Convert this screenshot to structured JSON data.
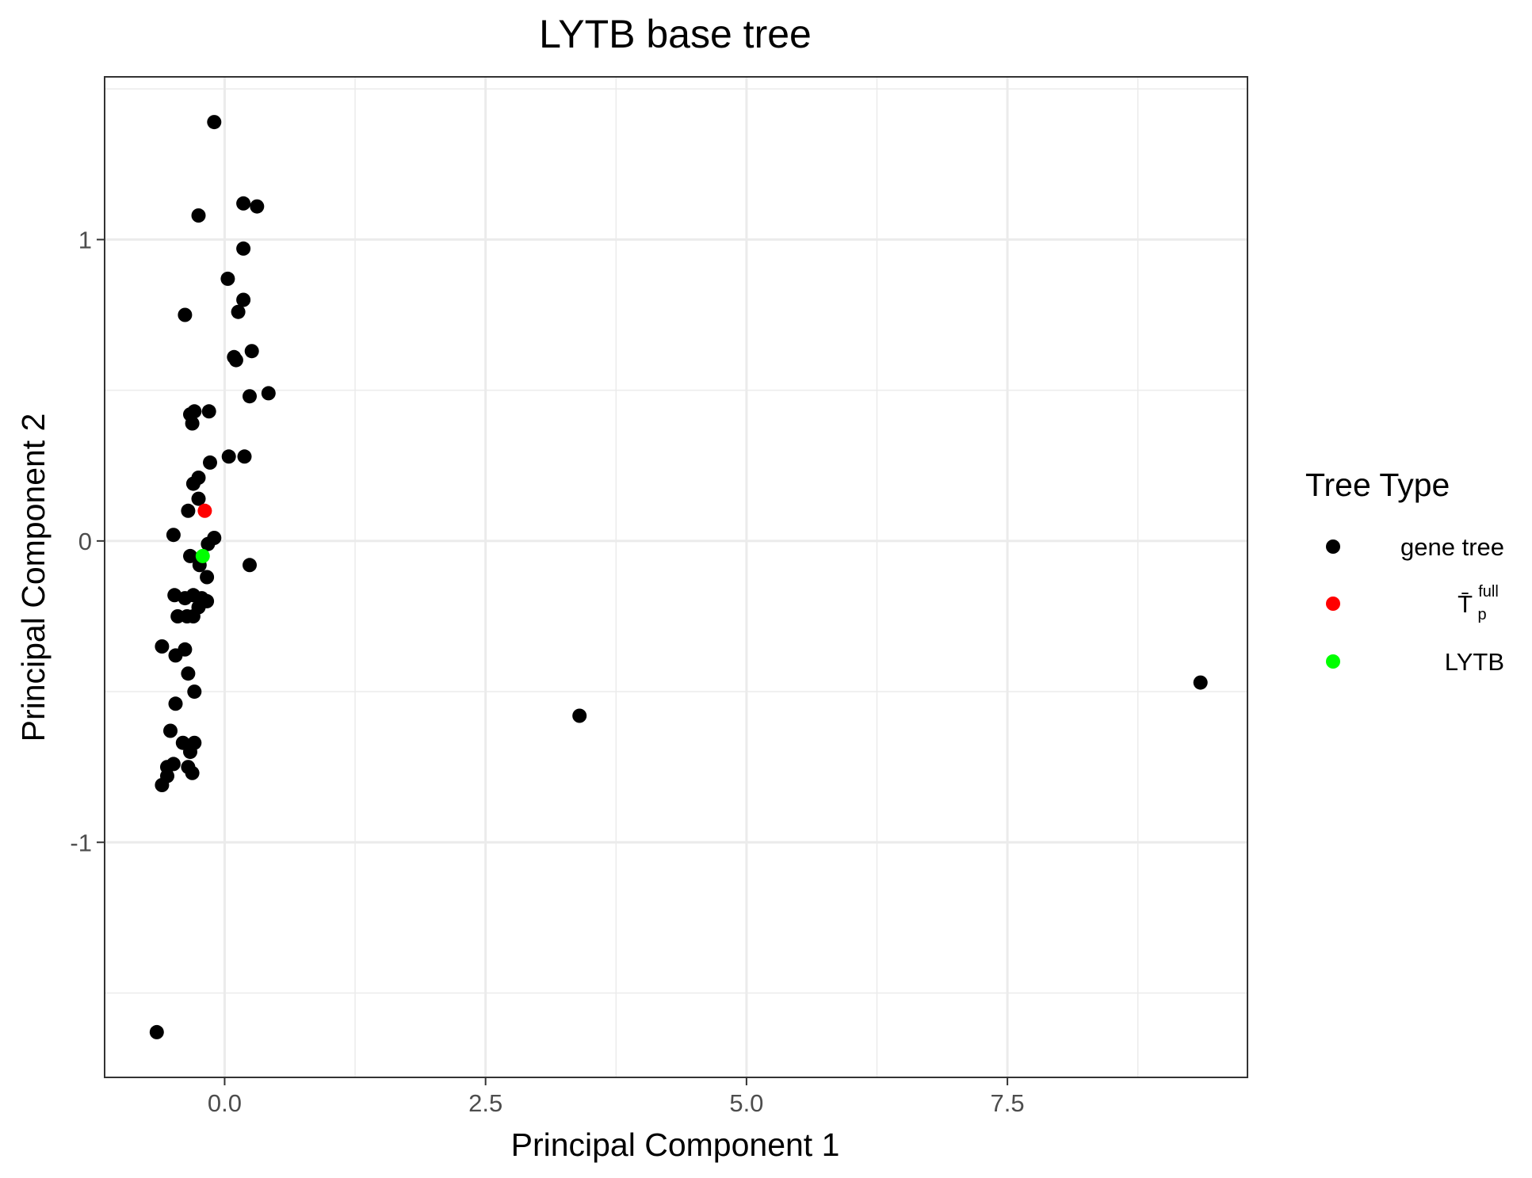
{
  "chart_data": {
    "type": "scatter",
    "title": "LYTB base tree",
    "xlabel": "Principal Component 1",
    "ylabel": "Principal Component 2",
    "xlim": [
      -1.15,
      9.8
    ],
    "ylim": [
      -1.78,
      1.54
    ],
    "xticks": [
      0.0,
      2.5,
      5.0,
      7.5
    ],
    "xtick_labels": [
      "0.0",
      "2.5",
      "5.0",
      "7.5"
    ],
    "yticks": [
      -1,
      0,
      1
    ],
    "ytick_labels": [
      "-1",
      "0",
      "1"
    ],
    "grid": true,
    "legend": {
      "title": "Tree Type",
      "placement": "right",
      "entries": [
        {
          "label": "gene tree",
          "color": "#000000"
        },
        {
          "label": "T̄",
          "sub": "p",
          "sup": "full",
          "color": "#ff0000"
        },
        {
          "label": "LYTB",
          "color": "#00ff00"
        }
      ]
    },
    "series": [
      {
        "name": "gene tree",
        "color": "#000000",
        "points": [
          [
            -0.1,
            1.39
          ],
          [
            -0.25,
            1.08
          ],
          [
            0.18,
            1.12
          ],
          [
            0.31,
            1.11
          ],
          [
            0.18,
            0.97
          ],
          [
            0.03,
            0.87
          ],
          [
            0.18,
            0.8
          ],
          [
            -0.38,
            0.75
          ],
          [
            0.13,
            0.76
          ],
          [
            0.26,
            0.63
          ],
          [
            0.09,
            0.61
          ],
          [
            0.11,
            0.6
          ],
          [
            0.42,
            0.49
          ],
          [
            0.24,
            0.48
          ],
          [
            -0.29,
            0.43
          ],
          [
            -0.33,
            0.42
          ],
          [
            -0.15,
            0.43
          ],
          [
            -0.31,
            0.39
          ],
          [
            0.04,
            0.28
          ],
          [
            0.19,
            0.28
          ],
          [
            -0.14,
            0.26
          ],
          [
            -0.25,
            0.21
          ],
          [
            -0.3,
            0.19
          ],
          [
            -0.25,
            0.14
          ],
          [
            -0.35,
            0.1
          ],
          [
            -0.49,
            0.02
          ],
          [
            -0.1,
            0.01
          ],
          [
            -0.16,
            -0.01
          ],
          [
            -0.33,
            -0.05
          ],
          [
            -0.24,
            -0.08
          ],
          [
            0.24,
            -0.08
          ],
          [
            -0.17,
            -0.12
          ],
          [
            -0.48,
            -0.18
          ],
          [
            -0.3,
            -0.18
          ],
          [
            -0.38,
            -0.19
          ],
          [
            -0.22,
            -0.19
          ],
          [
            -0.17,
            -0.2
          ],
          [
            -0.25,
            -0.22
          ],
          [
            -0.45,
            -0.25
          ],
          [
            -0.36,
            -0.25
          ],
          [
            -0.3,
            -0.25
          ],
          [
            -0.6,
            -0.35
          ],
          [
            -0.38,
            -0.36
          ],
          [
            -0.47,
            -0.38
          ],
          [
            -0.35,
            -0.44
          ],
          [
            -0.29,
            -0.5
          ],
          [
            -0.47,
            -0.54
          ],
          [
            -0.52,
            -0.63
          ],
          [
            -0.4,
            -0.67
          ],
          [
            -0.29,
            -0.67
          ],
          [
            -0.33,
            -0.7
          ],
          [
            -0.55,
            -0.75
          ],
          [
            -0.49,
            -0.74
          ],
          [
            -0.35,
            -0.75
          ],
          [
            -0.31,
            -0.77
          ],
          [
            -0.55,
            -0.78
          ],
          [
            -0.6,
            -0.81
          ],
          [
            -0.65,
            -1.63
          ],
          [
            3.4,
            -0.58
          ],
          [
            9.35,
            -0.47
          ]
        ]
      },
      {
        "name": "T̄ p full",
        "color": "#ff0000",
        "points": [
          [
            -0.19,
            0.1
          ]
        ]
      },
      {
        "name": "LYTB",
        "color": "#00ff00",
        "points": [
          [
            -0.21,
            -0.05
          ]
        ]
      }
    ]
  }
}
